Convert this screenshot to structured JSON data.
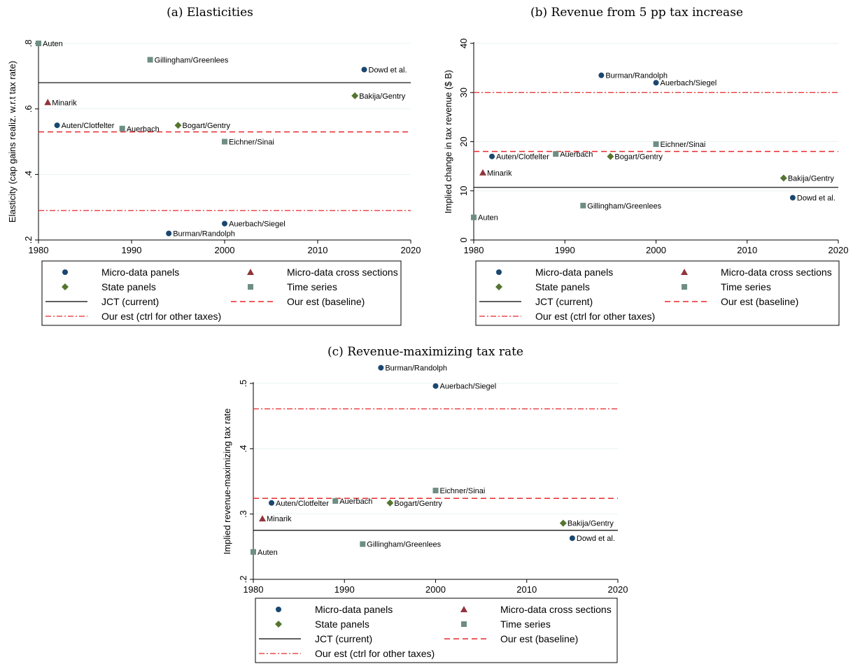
{
  "chart_data": [
    {
      "type": "scatter",
      "title": "(a) Elasticities",
      "xlabel": "",
      "ylabel": "Elasticity (cap gains realiz. w.r.t tax rate)",
      "xlim": [
        1980,
        2020
      ],
      "ylim": [
        0.2,
        0.8
      ],
      "xticks": [
        1980,
        1990,
        2000,
        2010,
        2020
      ],
      "xtick_labels": [
        "1980",
        "1990",
        "2000",
        "2010",
        "2020"
      ],
      "yticks": [
        0.2,
        0.4,
        0.6,
        0.8
      ],
      "ytick_labels": [
        ".2",
        ".4",
        ".6",
        ".8"
      ],
      "grid": "horizontal",
      "points": [
        {
          "label": "Auten",
          "group": "Time series",
          "x": 1980,
          "y": 0.8
        },
        {
          "label": "Gillingham/Greenlees",
          "group": "Time series",
          "x": 1992,
          "y": 0.75
        },
        {
          "label": "Dowd et al.",
          "group": "Micro-data panels",
          "x": 2015,
          "y": 0.72
        },
        {
          "label": "Bakija/Gentry",
          "group": "State panels",
          "x": 2014,
          "y": 0.64
        },
        {
          "label": "Minarik",
          "group": "Micro-data cross sections",
          "x": 1981,
          "y": 0.62
        },
        {
          "label": "Auten/Clotfelter",
          "group": "Micro-data panels",
          "x": 1982,
          "y": 0.55
        },
        {
          "label": "Auerbach",
          "group": "Time series",
          "x": 1989,
          "y": 0.54
        },
        {
          "label": "Bogart/Gentry",
          "group": "State panels",
          "x": 1995,
          "y": 0.55
        },
        {
          "label": "Eichner/Sinai",
          "group": "Time series",
          "x": 2000,
          "y": 0.5
        },
        {
          "label": "Auerbach/Siegel",
          "group": "Micro-data panels",
          "x": 2000,
          "y": 0.25
        },
        {
          "label": "Burman/Randolph",
          "group": "Micro-data panels",
          "x": 1994,
          "y": 0.22
        }
      ],
      "lines": [
        {
          "name": "JCT (current)",
          "y": 0.68
        },
        {
          "name": "Our est (baseline)",
          "y": 0.53
        },
        {
          "name": "Our est (ctrl for other taxes)",
          "y": 0.29
        }
      ]
    },
    {
      "type": "scatter",
      "title": "(b) Revenue from 5 pp tax increase",
      "xlabel": "",
      "ylabel": "Implied change in tax revenue ($ B)",
      "xlim": [
        1980,
        2020
      ],
      "ylim": [
        0,
        40
      ],
      "xticks": [
        1980,
        1990,
        2000,
        2010,
        2020
      ],
      "xtick_labels": [
        "1980",
        "1990",
        "2000",
        "2010",
        "2020"
      ],
      "yticks": [
        0,
        10,
        20,
        30,
        40
      ],
      "ytick_labels": [
        "0",
        "10",
        "20",
        "30",
        "40"
      ],
      "grid": "horizontal",
      "points": [
        {
          "label": "Burman/Randolph",
          "group": "Micro-data panels",
          "x": 1994,
          "y": 33.5
        },
        {
          "label": "Auerbach/Siegel",
          "group": "Micro-data panels",
          "x": 2000,
          "y": 32
        },
        {
          "label": "Eichner/Sinai",
          "group": "Time series",
          "x": 2000,
          "y": 19.5
        },
        {
          "label": "Auerbach",
          "group": "Time series",
          "x": 1989,
          "y": 17.5
        },
        {
          "label": "Auten/Clotfelter",
          "group": "Micro-data panels",
          "x": 1982,
          "y": 17
        },
        {
          "label": "Bogart/Gentry",
          "group": "State panels",
          "x": 1995,
          "y": 17
        },
        {
          "label": "Minarik",
          "group": "Micro-data cross sections",
          "x": 1981,
          "y": 13.7
        },
        {
          "label": "Bakija/Gentry",
          "group": "State panels",
          "x": 2014,
          "y": 12.6
        },
        {
          "label": "Dowd et al.",
          "group": "Micro-data panels",
          "x": 2015,
          "y": 8.6
        },
        {
          "label": "Gillingham/Greenlees",
          "group": "Time series",
          "x": 1992,
          "y": 7
        },
        {
          "label": "Auten",
          "group": "Time series",
          "x": 1980,
          "y": 4.6
        }
      ],
      "lines": [
        {
          "name": "JCT (current)",
          "y": 10.7
        },
        {
          "name": "Our est (baseline)",
          "y": 18
        },
        {
          "name": "Our est (ctrl for other taxes)",
          "y": 30
        }
      ]
    },
    {
      "type": "scatter",
      "title": "(c) Revenue-maximizing tax rate",
      "xlabel": "",
      "ylabel": "Implied revenue-maximizing tax rate",
      "xlim": [
        1980,
        2020
      ],
      "ylim": [
        0.2,
        0.5
      ],
      "xticks": [
        1980,
        1990,
        2000,
        2010,
        2020
      ],
      "xtick_labels": [
        "1980",
        "1990",
        "2000",
        "2010",
        "2020"
      ],
      "yticks": [
        0.2,
        0.3,
        0.4,
        0.5
      ],
      "ytick_labels": [
        ".2",
        ".3",
        ".4",
        ".5"
      ],
      "grid": "horizontal",
      "points": [
        {
          "label": "Burman/Randolph",
          "group": "Micro-data panels",
          "x": 1994,
          "y": 0.524
        },
        {
          "label": "Auerbach/Siegel",
          "group": "Micro-data panels",
          "x": 2000,
          "y": 0.496
        },
        {
          "label": "Eichner/Sinai",
          "group": "Time series",
          "x": 2000,
          "y": 0.336
        },
        {
          "label": "Auerbach",
          "group": "Time series",
          "x": 1989,
          "y": 0.32
        },
        {
          "label": "Auten/Clotfelter",
          "group": "Micro-data panels",
          "x": 1982,
          "y": 0.317
        },
        {
          "label": "Bogart/Gentry",
          "group": "State panels",
          "x": 1995,
          "y": 0.317
        },
        {
          "label": "Minarik",
          "group": "Micro-data cross sections",
          "x": 1981,
          "y": 0.293
        },
        {
          "label": "Bakija/Gentry",
          "group": "State panels",
          "x": 2014,
          "y": 0.286
        },
        {
          "label": "Dowd et al.",
          "group": "Micro-data panels",
          "x": 2015,
          "y": 0.263
        },
        {
          "label": "Gillingham/Greenlees",
          "group": "Time series",
          "x": 1992,
          "y": 0.254
        },
        {
          "label": "Auten",
          "group": "Time series",
          "x": 1980,
          "y": 0.242
        }
      ],
      "lines": [
        {
          "name": "JCT (current)",
          "y": 0.275
        },
        {
          "name": "Our est (baseline)",
          "y": 0.324
        },
        {
          "name": "Our est (ctrl for other taxes)",
          "y": 0.461
        }
      ]
    }
  ],
  "legend": {
    "placement": "below",
    "items": [
      {
        "label": "Micro-data panels",
        "kind": "circle",
        "color": "#1a476f"
      },
      {
        "label": "Micro-data cross sections",
        "kind": "triangle",
        "color": "#90353b"
      },
      {
        "label": "State panels",
        "kind": "diamond",
        "color": "#55752f"
      },
      {
        "label": "Time series",
        "kind": "square",
        "color": "#6e8e84"
      },
      {
        "label": "JCT (current)",
        "kind": "solid",
        "color": "#000000"
      },
      {
        "label": "Our est (baseline)",
        "kind": "dash",
        "color": "#e8272b"
      },
      {
        "label": "Our est (ctrl for other taxes)",
        "kind": "dashdot",
        "color": "#e8272b"
      }
    ]
  },
  "colors": {
    "Micro-data panels": "#1a476f",
    "Micro-data cross sections": "#90353b",
    "State panels": "#55752f",
    "Time series": "#6e8e84",
    "JCT (current)": "#000000",
    "Our est (baseline)": "#e8272b",
    "Our est (ctrl for other taxes)": "#e8272b"
  }
}
